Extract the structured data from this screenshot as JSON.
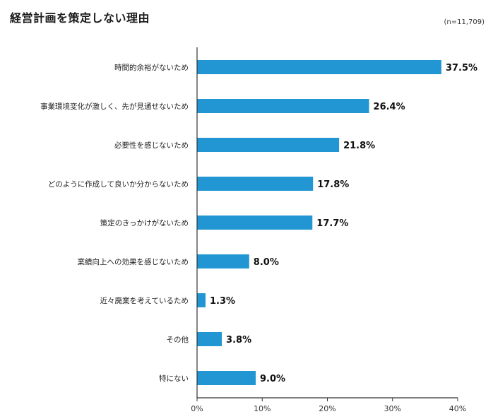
{
  "header": {
    "title": "経営計画を策定しない理由",
    "sample_size": "(n=11,709)"
  },
  "chart_data": {
    "type": "bar",
    "orientation": "horizontal",
    "title": "経営計画を策定しない理由",
    "categories": [
      "時間的余裕がないため",
      "事業環境変化が激しく、先が見通せないため",
      "必要性を感じないため",
      "どのように作成して良いか分からないため",
      "策定のきっかけがないため",
      "業績向上への効果を感じないため",
      "近々廃業を考えているため",
      "その他",
      "特にない"
    ],
    "values": [
      37.5,
      26.4,
      21.8,
      17.8,
      17.7,
      8.0,
      1.3,
      3.8,
      9.0
    ],
    "value_labels": [
      "37.5%",
      "26.4%",
      "21.8%",
      "17.8%",
      "17.7%",
      "8.0%",
      "1.3%",
      "3.8%",
      "9.0%"
    ],
    "xlim": [
      0,
      40
    ],
    "x_ticks": [
      0,
      10,
      20,
      30,
      40
    ],
    "x_tick_labels": [
      "0%",
      "10%",
      "20%",
      "30%",
      "40%"
    ],
    "bar_color": "#2196d3",
    "grid": false,
    "legend": "none"
  }
}
